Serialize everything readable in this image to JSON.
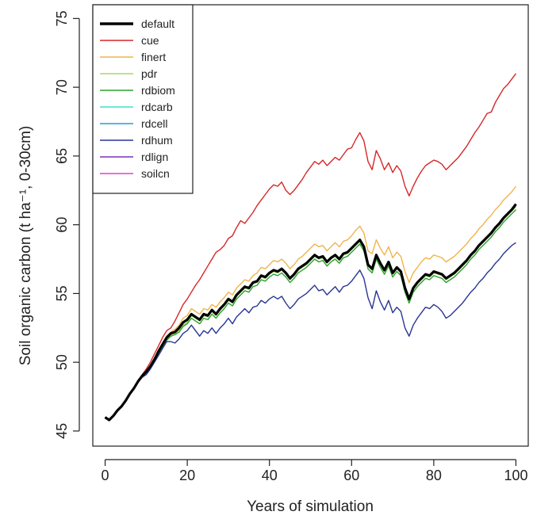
{
  "chart_data": {
    "type": "line",
    "title": "",
    "xlabel": "Years of simulation",
    "ylabel": "Soil organic carbon (t ha⁻¹, 0-30cm)",
    "xlim": [
      -3,
      103
    ],
    "ylim": [
      43.9,
      76
    ],
    "xticks": [
      0,
      20,
      40,
      60,
      80,
      100
    ],
    "yticks": [
      45,
      50,
      55,
      60,
      65,
      70,
      75
    ],
    "grid": false,
    "legend_position": "top-left",
    "x": [
      0,
      1,
      2,
      3,
      4,
      5,
      6,
      7,
      8,
      9,
      10,
      11,
      12,
      13,
      14,
      15,
      16,
      17,
      18,
      19,
      20,
      21,
      22,
      23,
      24,
      25,
      26,
      27,
      28,
      29,
      30,
      31,
      32,
      33,
      34,
      35,
      36,
      37,
      38,
      39,
      40,
      41,
      42,
      43,
      44,
      45,
      46,
      47,
      48,
      49,
      50,
      51,
      52,
      53,
      54,
      55,
      56,
      57,
      58,
      59,
      60,
      61,
      62,
      63,
      64,
      65,
      66,
      67,
      68,
      69,
      70,
      71,
      72,
      73,
      74,
      75,
      76,
      77,
      78,
      79,
      80,
      81,
      82,
      83,
      84,
      85,
      86,
      87,
      88,
      89,
      90,
      91,
      92,
      93,
      94,
      95,
      96,
      97,
      98,
      99,
      100
    ],
    "series": [
      {
        "name": "default",
        "color": "#000000",
        "values": [
          46.0,
          45.8,
          46.1,
          46.5,
          46.8,
          47.2,
          47.7,
          48.1,
          48.6,
          49.0,
          49.3,
          49.7,
          50.2,
          50.8,
          51.3,
          51.8,
          52.1,
          52.2,
          52.5,
          52.9,
          53.1,
          53.5,
          53.3,
          53.1,
          53.5,
          53.4,
          53.8,
          53.5,
          53.9,
          54.2,
          54.6,
          54.4,
          54.9,
          55.2,
          55.5,
          55.4,
          55.8,
          55.9,
          56.3,
          56.2,
          56.5,
          56.7,
          56.6,
          56.8,
          56.5,
          56.1,
          56.4,
          56.8,
          57.0,
          57.2,
          57.5,
          57.8,
          57.6,
          57.7,
          57.3,
          57.6,
          57.8,
          57.5,
          57.9,
          58.0,
          58.3,
          58.6,
          58.9,
          58.4,
          57.1,
          56.8,
          57.8,
          57.2,
          56.7,
          57.3,
          56.5,
          56.9,
          56.6,
          55.4,
          54.6,
          55.4,
          55.8,
          56.1,
          56.4,
          56.3,
          56.6,
          56.5,
          56.4,
          56.1,
          56.3,
          56.5,
          56.8,
          57.1,
          57.4,
          57.8,
          58.1,
          58.5,
          58.8,
          59.1,
          59.4,
          59.8,
          60.1,
          60.5,
          60.8,
          61.1,
          61.5
        ]
      },
      {
        "name": "cue",
        "color": "#d62728",
        "values": [
          46.0,
          45.8,
          46.1,
          46.5,
          46.8,
          47.2,
          47.7,
          48.1,
          48.6,
          49.1,
          49.5,
          50.0,
          50.6,
          51.2,
          51.8,
          52.3,
          52.5,
          53.0,
          53.6,
          54.2,
          54.6,
          55.1,
          55.6,
          56.0,
          56.5,
          57.0,
          57.5,
          58.0,
          58.2,
          58.5,
          59.0,
          59.2,
          59.8,
          60.3,
          60.1,
          60.5,
          60.9,
          61.4,
          61.8,
          62.2,
          62.6,
          62.9,
          62.8,
          63.1,
          62.5,
          62.2,
          62.5,
          62.9,
          63.3,
          63.8,
          64.2,
          64.6,
          64.4,
          64.7,
          64.3,
          64.6,
          64.9,
          64.7,
          65.1,
          65.5,
          65.6,
          66.2,
          66.7,
          66.1,
          64.6,
          64.0,
          65.4,
          64.8,
          64.0,
          64.5,
          63.8,
          64.3,
          63.9,
          62.8,
          62.1,
          62.8,
          63.4,
          63.9,
          64.3,
          64.5,
          64.7,
          64.6,
          64.4,
          64.0,
          64.3,
          64.6,
          64.9,
          65.3,
          65.7,
          66.2,
          66.7,
          67.1,
          67.6,
          68.1,
          68.2,
          68.9,
          69.4,
          69.9,
          70.2,
          70.6,
          71.0
        ]
      },
      {
        "name": "finert",
        "color": "#f0b44c",
        "values": [
          46.0,
          45.8,
          46.1,
          46.5,
          46.8,
          47.2,
          47.7,
          48.1,
          48.6,
          49.0,
          49.3,
          49.8,
          50.3,
          50.9,
          51.4,
          51.9,
          52.2,
          52.4,
          52.7,
          53.2,
          53.4,
          53.9,
          53.7,
          53.5,
          53.9,
          53.8,
          54.2,
          54.0,
          54.4,
          54.7,
          55.1,
          54.9,
          55.4,
          55.7,
          56.0,
          55.9,
          56.3,
          56.5,
          56.9,
          56.8,
          57.1,
          57.4,
          57.3,
          57.5,
          57.2,
          56.8,
          57.1,
          57.5,
          57.7,
          58.0,
          58.3,
          58.6,
          58.4,
          58.5,
          58.1,
          58.4,
          58.7,
          58.4,
          58.8,
          58.9,
          59.2,
          59.6,
          59.9,
          59.4,
          58.1,
          57.9,
          58.9,
          58.3,
          57.8,
          58.4,
          57.6,
          58.0,
          57.7,
          56.6,
          55.8,
          56.5,
          56.9,
          57.3,
          57.6,
          57.5,
          57.8,
          57.7,
          57.6,
          57.3,
          57.5,
          57.7,
          58.0,
          58.3,
          58.6,
          59.0,
          59.3,
          59.7,
          60.0,
          60.4,
          60.7,
          61.1,
          61.4,
          61.8,
          62.1,
          62.4,
          62.8
        ]
      },
      {
        "name": "pdr",
        "color": "#a6d96a",
        "values": [
          46.0,
          45.8,
          46.1,
          46.5,
          46.8,
          47.2,
          47.7,
          48.1,
          48.6,
          49.0,
          49.3,
          49.7,
          50.2,
          50.7,
          51.2,
          51.7,
          52.0,
          52.1,
          52.3,
          52.7,
          52.9,
          53.4,
          53.2,
          53.0,
          53.4,
          53.3,
          53.7,
          53.4,
          53.8,
          54.1,
          54.5,
          54.3,
          54.8,
          55.1,
          55.4,
          55.3,
          55.7,
          55.8,
          56.2,
          56.1,
          56.4,
          56.6,
          56.5,
          56.7,
          56.4,
          56.0,
          56.3,
          56.7,
          56.9,
          57.1,
          57.4,
          57.7,
          57.5,
          57.6,
          57.2,
          57.5,
          57.7,
          57.4,
          57.8,
          57.9,
          58.2,
          58.5,
          58.8,
          58.3,
          57.0,
          56.7,
          57.7,
          57.1,
          56.6,
          57.2,
          56.4,
          56.8,
          56.5,
          55.3,
          54.5,
          55.3,
          55.7,
          56.0,
          56.3,
          56.2,
          56.5,
          56.4,
          56.3,
          56.0,
          56.2,
          56.4,
          56.7,
          57.0,
          57.3,
          57.7,
          58.0,
          58.4,
          58.7,
          59.0,
          59.3,
          59.7,
          60.0,
          60.4,
          60.7,
          61.0,
          61.3
        ]
      },
      {
        "name": "rdbiom",
        "color": "#2ca02c",
        "values": [
          46.0,
          45.8,
          46.1,
          46.5,
          46.8,
          47.2,
          47.7,
          48.1,
          48.6,
          49.0,
          49.3,
          49.7,
          50.1,
          50.6,
          51.1,
          51.6,
          51.9,
          52.0,
          52.2,
          52.6,
          52.8,
          53.2,
          53.0,
          52.8,
          53.2,
          53.1,
          53.5,
          53.2,
          53.6,
          53.9,
          54.3,
          54.1,
          54.6,
          54.9,
          55.2,
          55.1,
          55.5,
          55.6,
          56.0,
          55.9,
          56.2,
          56.4,
          56.3,
          56.5,
          56.2,
          55.8,
          56.1,
          56.5,
          56.7,
          56.9,
          57.2,
          57.5,
          57.3,
          57.4,
          57.0,
          57.3,
          57.5,
          57.2,
          57.6,
          57.7,
          58.0,
          58.3,
          58.6,
          58.1,
          56.8,
          56.5,
          57.5,
          56.9,
          56.4,
          57.0,
          56.2,
          56.6,
          56.3,
          55.1,
          54.3,
          55.1,
          55.5,
          55.8,
          56.1,
          56.0,
          56.3,
          56.2,
          56.1,
          55.8,
          56.0,
          56.2,
          56.5,
          56.8,
          57.1,
          57.5,
          57.8,
          58.2,
          58.5,
          58.8,
          59.1,
          59.5,
          59.8,
          60.2,
          60.5,
          60.8,
          61.1
        ]
      },
      {
        "name": "rdcarb",
        "color": "#40e0c8",
        "values": [
          46.0,
          45.8,
          46.1,
          46.5,
          46.8,
          47.2,
          47.7,
          48.1,
          48.6,
          49.0,
          49.3,
          49.7,
          50.2,
          50.8,
          51.3,
          51.8,
          52.1,
          52.2,
          52.5,
          52.9,
          53.1,
          53.5,
          53.3,
          53.1,
          53.5,
          53.4,
          53.8,
          53.5,
          53.9,
          54.2,
          54.6,
          54.4,
          54.9,
          55.2,
          55.5,
          55.4,
          55.8,
          55.9,
          56.3,
          56.2,
          56.5,
          56.7,
          56.6,
          56.8,
          56.5,
          56.1,
          56.4,
          56.8,
          57.0,
          57.2,
          57.5,
          57.8,
          57.6,
          57.7,
          57.3,
          57.6,
          57.8,
          57.5,
          57.9,
          58.0,
          58.3,
          58.6,
          58.9,
          58.4,
          57.1,
          56.8,
          57.8,
          57.2,
          56.7,
          57.3,
          56.5,
          56.9,
          56.6,
          55.4,
          54.6,
          55.4,
          55.8,
          56.1,
          56.4,
          56.3,
          56.6,
          56.5,
          56.4,
          56.1,
          56.3,
          56.5,
          56.8,
          57.1,
          57.4,
          57.8,
          58.1,
          58.5,
          58.8,
          59.1,
          59.4,
          59.8,
          60.1,
          60.5,
          60.8,
          61.1,
          61.5
        ]
      },
      {
        "name": "rdcell",
        "color": "#1f9fd8",
        "values": [
          46.0,
          45.8,
          46.1,
          46.5,
          46.8,
          47.2,
          47.7,
          48.1,
          48.6,
          49.0,
          49.3,
          49.7,
          50.2,
          50.8,
          51.3,
          51.8,
          52.1,
          52.2,
          52.5,
          52.9,
          53.1,
          53.5,
          53.3,
          53.1,
          53.5,
          53.4,
          53.8,
          53.5,
          53.9,
          54.2,
          54.6,
          54.4,
          54.9,
          55.2,
          55.5,
          55.4,
          55.8,
          55.9,
          56.3,
          56.2,
          56.5,
          56.7,
          56.6,
          56.8,
          56.5,
          56.1,
          56.4,
          56.8,
          57.0,
          57.2,
          57.5,
          57.8,
          57.6,
          57.7,
          57.3,
          57.6,
          57.8,
          57.5,
          57.9,
          58.0,
          58.3,
          58.6,
          58.9,
          58.4,
          57.1,
          56.8,
          57.8,
          57.2,
          56.7,
          57.3,
          56.5,
          56.9,
          56.6,
          55.4,
          54.6,
          55.4,
          55.8,
          56.1,
          56.4,
          56.3,
          56.6,
          56.5,
          56.4,
          56.1,
          56.3,
          56.5,
          56.8,
          57.1,
          57.4,
          57.8,
          58.1,
          58.5,
          58.8,
          59.1,
          59.4,
          59.8,
          60.1,
          60.5,
          60.8,
          61.1,
          61.5
        ]
      },
      {
        "name": "rdhum",
        "color": "#283593",
        "values": [
          46.0,
          45.8,
          46.1,
          46.5,
          46.8,
          47.2,
          47.7,
          48.1,
          48.6,
          48.9,
          49.1,
          49.5,
          50.0,
          50.5,
          51.0,
          51.5,
          51.5,
          51.4,
          51.7,
          52.1,
          52.3,
          52.7,
          52.3,
          51.9,
          52.3,
          52.1,
          52.5,
          52.1,
          52.5,
          52.8,
          53.2,
          52.8,
          53.3,
          53.6,
          53.9,
          53.6,
          54.0,
          54.1,
          54.5,
          54.3,
          54.6,
          54.8,
          54.6,
          54.8,
          54.3,
          53.9,
          54.2,
          54.6,
          54.8,
          55.0,
          55.3,
          55.6,
          55.2,
          55.3,
          54.9,
          55.2,
          55.5,
          55.1,
          55.5,
          55.6,
          55.9,
          56.3,
          56.7,
          56.1,
          54.7,
          53.9,
          55.2,
          54.4,
          53.8,
          54.5,
          53.6,
          54.0,
          53.7,
          52.5,
          51.9,
          52.7,
          53.2,
          53.6,
          54.0,
          53.9,
          54.2,
          54.0,
          53.7,
          53.2,
          53.4,
          53.7,
          54.0,
          54.3,
          54.7,
          55.1,
          55.4,
          55.8,
          56.1,
          56.5,
          56.8,
          57.2,
          57.5,
          57.9,
          58.2,
          58.5,
          58.7
        ]
      },
      {
        "name": "rdlign",
        "color": "#7b2fbf",
        "values": [
          46.0,
          45.8,
          46.1,
          46.5,
          46.8,
          47.2,
          47.7,
          48.1,
          48.6,
          49.0,
          49.3,
          49.7,
          50.2,
          50.8,
          51.3,
          51.8,
          52.1,
          52.2,
          52.5,
          52.9,
          53.1,
          53.5,
          53.3,
          53.1,
          53.5,
          53.4,
          53.8,
          53.5,
          53.9,
          54.2,
          54.6,
          54.4,
          54.9,
          55.2,
          55.5,
          55.4,
          55.8,
          55.9,
          56.3,
          56.2,
          56.5,
          56.7,
          56.6,
          56.8,
          56.5,
          56.1,
          56.4,
          56.8,
          57.0,
          57.2,
          57.5,
          57.8,
          57.6,
          57.7,
          57.3,
          57.6,
          57.8,
          57.5,
          57.9,
          58.0,
          58.3,
          58.6,
          58.9,
          58.4,
          57.1,
          56.8,
          57.8,
          57.2,
          56.7,
          57.3,
          56.5,
          56.9,
          56.6,
          55.4,
          54.6,
          55.4,
          55.8,
          56.1,
          56.4,
          56.3,
          56.6,
          56.5,
          56.4,
          56.1,
          56.3,
          56.5,
          56.8,
          57.1,
          57.4,
          57.8,
          58.1,
          58.5,
          58.8,
          59.1,
          59.4,
          59.8,
          60.1,
          60.5,
          60.8,
          61.1,
          61.5
        ]
      },
      {
        "name": "soilcn",
        "color": "#e040c8",
        "values": [
          46.0,
          45.8,
          46.1,
          46.5,
          46.8,
          47.2,
          47.7,
          48.1,
          48.6,
          49.0,
          49.3,
          49.7,
          50.2,
          50.8,
          51.3,
          51.8,
          52.1,
          52.2,
          52.5,
          52.9,
          53.1,
          53.5,
          53.3,
          53.1,
          53.5,
          53.4,
          53.8,
          53.5,
          53.9,
          54.2,
          54.6,
          54.4,
          54.9,
          55.2,
          55.5,
          55.4,
          55.8,
          55.9,
          56.3,
          56.2,
          56.5,
          56.7,
          56.6,
          56.8,
          56.5,
          56.1,
          56.4,
          56.8,
          57.0,
          57.2,
          57.5,
          57.8,
          57.6,
          57.7,
          57.3,
          57.6,
          57.8,
          57.5,
          57.9,
          58.0,
          58.3,
          58.6,
          58.9,
          58.4,
          57.1,
          56.8,
          57.8,
          57.2,
          56.7,
          57.3,
          56.5,
          56.9,
          56.6,
          55.4,
          54.6,
          55.4,
          55.8,
          56.1,
          56.4,
          56.3,
          56.6,
          56.5,
          56.4,
          56.1,
          56.3,
          56.5,
          56.8,
          57.1,
          57.4,
          57.8,
          58.1,
          58.5,
          58.8,
          59.1,
          59.4,
          59.8,
          60.1,
          60.5,
          60.8,
          61.1,
          61.5
        ]
      }
    ]
  }
}
